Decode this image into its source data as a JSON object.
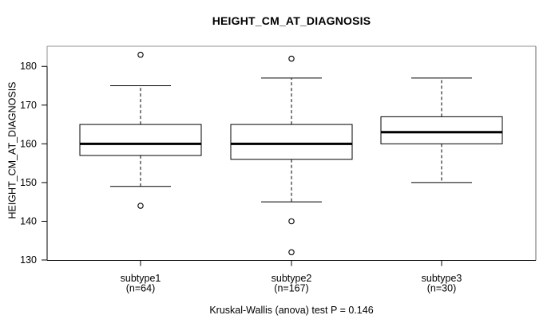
{
  "figure": {
    "title": "HEIGHT_CM_AT_DIAGNOSIS",
    "y_axis_label": "HEIGHT_CM_AT_DIAGNOSIS",
    "footnote": "Kruskal-Wallis (anova) test P = 0.146"
  },
  "chart_data": {
    "type": "boxplot",
    "title": "HEIGHT_CM_AT_DIAGNOSIS",
    "ylabel": "HEIGHT_CM_AT_DIAGNOSIS",
    "footnote": "Kruskal-Wallis (anova) test P = 0.146",
    "grid": false,
    "ylim": [
      129.9,
      185.2
    ],
    "y_ticks": [
      130,
      140,
      150,
      160,
      170,
      180
    ],
    "categories": [
      "subtype1",
      "subtype2",
      "subtype3"
    ],
    "groups": [
      {
        "label": "subtype1",
        "count_label": "(n=64)",
        "low_whisker": 149,
        "q1": 157,
        "median": 160,
        "q3": 165,
        "high_whisker": 175,
        "outliers": [
          183,
          144
        ]
      },
      {
        "label": "subtype2",
        "count_label": "(n=167)",
        "low_whisker": 145,
        "q1": 156,
        "median": 160,
        "q3": 165,
        "high_whisker": 177,
        "outliers": [
          182,
          140,
          132
        ]
      },
      {
        "label": "subtype3",
        "count_label": "(n=30)",
        "low_whisker": 150,
        "q1": 160,
        "median": 163,
        "q3": 167,
        "high_whisker": 177,
        "outliers": []
      }
    ],
    "colors": {
      "background": "#ffffff",
      "box_fill": "#ffffff",
      "line": "#000000",
      "frame_top": "#909090",
      "frame_right": "#686868"
    }
  }
}
